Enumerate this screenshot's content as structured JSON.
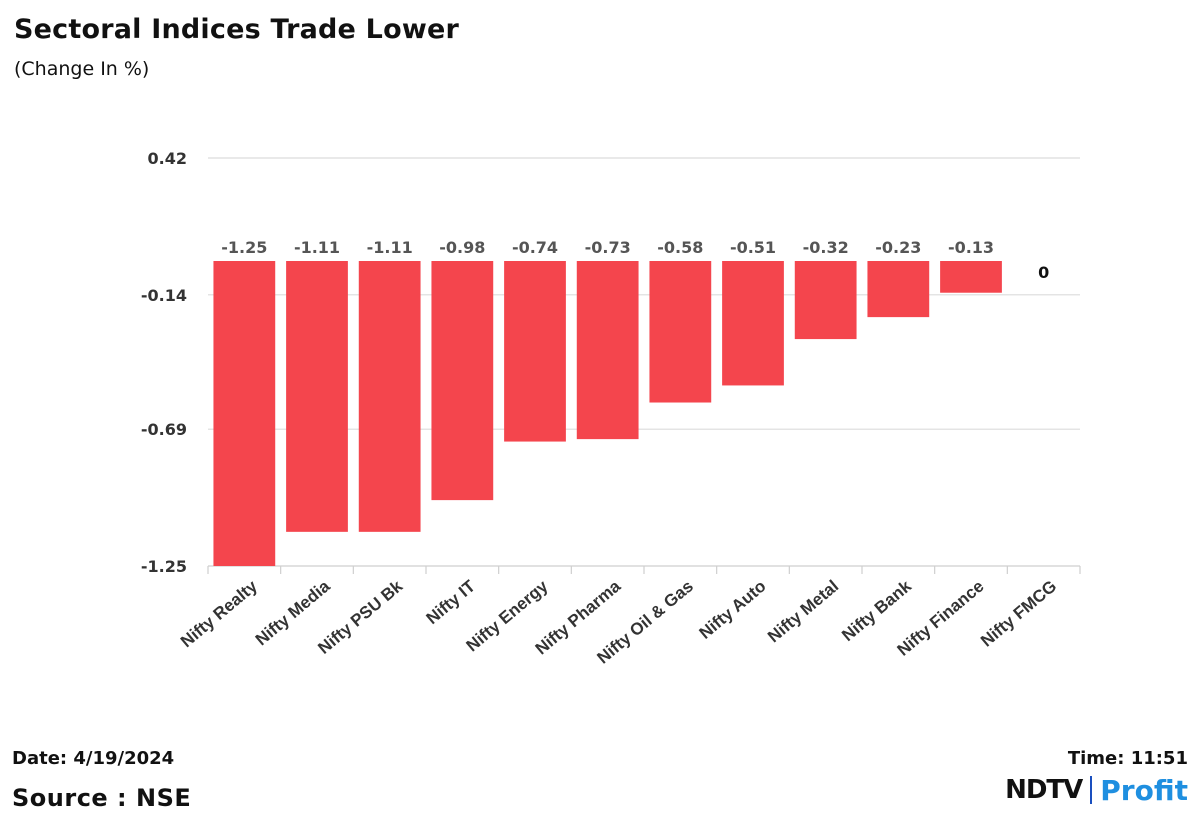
{
  "chart_data": {
    "type": "bar",
    "title": "Sectoral Indices Trade Lower",
    "subtitle": "(Change In %)",
    "categories": [
      "Nifty Realty",
      "Nifty Media",
      "Nifty PSU Bk",
      "Nifty IT",
      "Nifty Energy",
      "Nifty Pharma",
      "Nifty Oil & Gas",
      "Nifty Auto",
      "Nifty Metal",
      "Nifty Bank",
      "Nifty Finance",
      "Nifty FMCG"
    ],
    "values": [
      -1.25,
      -1.11,
      -1.11,
      -0.98,
      -0.74,
      -0.73,
      -0.58,
      -0.51,
      -0.32,
      -0.23,
      -0.13,
      0
    ],
    "data_labels": [
      "-1.25",
      "-1.11",
      "-1.11",
      "-0.98",
      "-0.74",
      "-0.73",
      "-0.58",
      "-0.51",
      "-0.32",
      "-0.23",
      "-0.13",
      "0"
    ],
    "yticks": [
      0.42,
      -0.14,
      -0.69,
      -1.25
    ],
    "ytick_labels": [
      "0.42",
      "-0.14",
      "-0.69",
      "-1.25"
    ],
    "ylim": [
      -1.25,
      0.42
    ],
    "bar_color": "#f4454d",
    "grid": true
  },
  "footer": {
    "date": "Date: 4/19/2024",
    "time": "Time: 11:51",
    "source": "Source : NSE",
    "brand_left": "NDTV",
    "brand_right": "Profit"
  }
}
